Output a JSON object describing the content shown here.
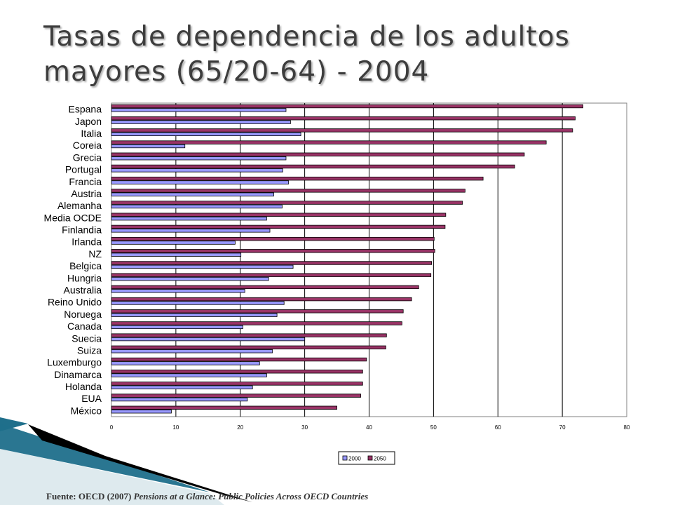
{
  "slide": {
    "title_line1": "Tasas de dependencia de los adultos",
    "title_line2": "mayores (65/20-64) - 2004",
    "source_prefix": "Fuente: OECD (2007) ",
    "source_italic": "Pensions at a Glance: Public Policies Across OECD Countries"
  },
  "colors": {
    "series_2000": "#9999ff",
    "series_2050": "#993366",
    "accent_blue": "#1f6f8b",
    "title_color": "#3d3d3d"
  },
  "chart_data": {
    "type": "bar",
    "orientation": "horizontal",
    "categories": [
      "Espana",
      "Japon",
      "Italia",
      "Coreia",
      "Grecia",
      "Portugal",
      "Francia",
      "Austria",
      "Alemanha",
      "Media OCDE",
      "Finlandia",
      "Irlanda",
      "NZ",
      "Belgica",
      "Hungria",
      "Australia",
      "Reino Unido",
      "Noruega",
      "Canada",
      "Suecia",
      "Suiza",
      "Luxemburgo",
      "Dinamarca",
      "Holanda",
      "EUA",
      "México"
    ],
    "series": [
      {
        "name": "2000",
        "color": "#9999ff",
        "values": [
          27.1,
          27.8,
          29.4,
          11.4,
          27.1,
          26.6,
          27.5,
          25.2,
          26.5,
          24.1,
          24.6,
          19.2,
          20.1,
          28.2,
          24.4,
          20.7,
          26.8,
          25.7,
          20.4,
          30.0,
          25.0,
          23.0,
          24.1,
          21.9,
          21.1,
          9.3
        ]
      },
      {
        "name": "2050",
        "color": "#993366",
        "values": [
          73.2,
          72.0,
          71.6,
          67.5,
          64.1,
          62.6,
          57.7,
          54.9,
          54.5,
          51.9,
          51.8,
          50.1,
          50.2,
          49.7,
          49.6,
          47.7,
          46.6,
          45.3,
          45.1,
          42.7,
          42.6,
          39.6,
          39.0,
          39.0,
          38.7,
          35.0
        ]
      }
    ],
    "xlim": [
      0,
      80
    ],
    "xticks": [
      0,
      10,
      20,
      30,
      40,
      50,
      60,
      70,
      80
    ],
    "grid": "vertical gridlines",
    "legend": "bottom-right",
    "xlabel": "",
    "ylabel": ""
  }
}
